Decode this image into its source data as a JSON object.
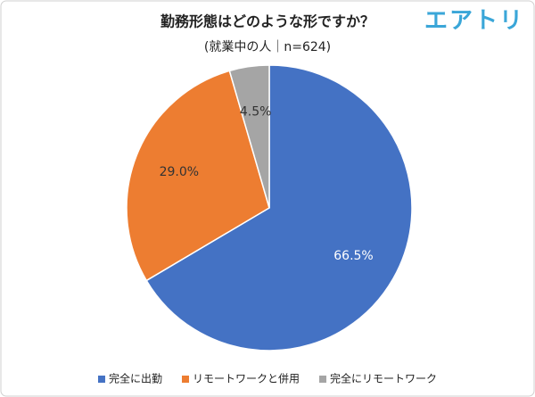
{
  "logo": "エアトリ",
  "chart_data": {
    "type": "pie",
    "title": "勤務形態はどのような形ですか？",
    "subtitle": "(就業中の人｜n=624)",
    "categories": [
      "完全に出勤",
      "リモートワークと併用",
      "完全にリモートワーク"
    ],
    "values": [
      66.5,
      29.0,
      4.5
    ],
    "value_labels": [
      "66.5%",
      "29.0%",
      "4.5%"
    ],
    "colors": [
      "#4472c4",
      "#ed7d31",
      "#a5a5a5"
    ],
    "legend": "bottom"
  }
}
